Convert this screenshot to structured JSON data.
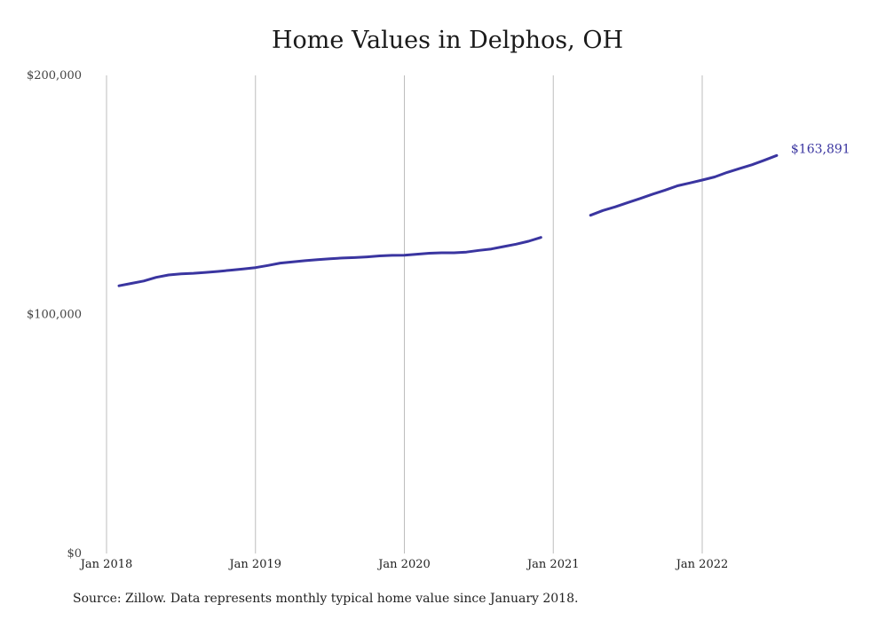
{
  "chart_data": {
    "type": "line",
    "title": "Home Values in Delphos, OH",
    "source": "Source: Zillow. Data represents monthly typical home value since January 2018.",
    "y_ticks": [
      "$0",
      "$100,000",
      "$200,000"
    ],
    "y_tick_values": [
      0,
      100000,
      200000
    ],
    "ylim": [
      0,
      200000
    ],
    "x_ticks": [
      "Jan 2018",
      "Jan 2019",
      "Jan 2020",
      "Jan 2021",
      "Jan 2022"
    ],
    "grid": "vertical",
    "end_label": "$163,891",
    "line_color": "#3a35a0",
    "series": [
      {
        "segments": [
          {
            "x": [
              "2018-02",
              "2018-03",
              "2018-04",
              "2018-05",
              "2018-06",
              "2018-07",
              "2018-08",
              "2018-09",
              "2018-10",
              "2018-11",
              "2018-12",
              "2019-01",
              "2019-02",
              "2019-03",
              "2019-04",
              "2019-05",
              "2019-06",
              "2019-07",
              "2019-08",
              "2019-09",
              "2019-10",
              "2019-11",
              "2019-12",
              "2020-01",
              "2020-02",
              "2020-03",
              "2020-04",
              "2020-05",
              "2020-06",
              "2020-07",
              "2020-08",
              "2020-09",
              "2020-10",
              "2020-11",
              "2020-12"
            ],
            "y": [
              112000,
              113000,
              114000,
              115500,
              116500,
              117000,
              117200,
              117600,
              118000,
              118500,
              119000,
              119600,
              120500,
              121500,
              122000,
              122500,
              122900,
              123300,
              123600,
              123800,
              124100,
              124500,
              124700,
              124800,
              125200,
              125600,
              125800,
              125800,
              126100,
              126800,
              127400,
              128400,
              129400,
              130600,
              132200
            ]
          },
          {
            "x": [
              "2021-04",
              "2021-05",
              "2021-06",
              "2021-07",
              "2021-08",
              "2021-09",
              "2021-10",
              "2021-11",
              "2021-12",
              "2022-01",
              "2022-02",
              "2022-03",
              "2022-04",
              "2022-05",
              "2022-06",
              "2022-07"
            ],
            "y": [
              141500,
              143500,
              145000,
              146800,
              148500,
              150300,
              152000,
              153800,
              155000,
              156200,
              157500,
              159400,
              161000,
              162600,
              164500,
              166500
            ]
          }
        ]
      }
    ]
  }
}
